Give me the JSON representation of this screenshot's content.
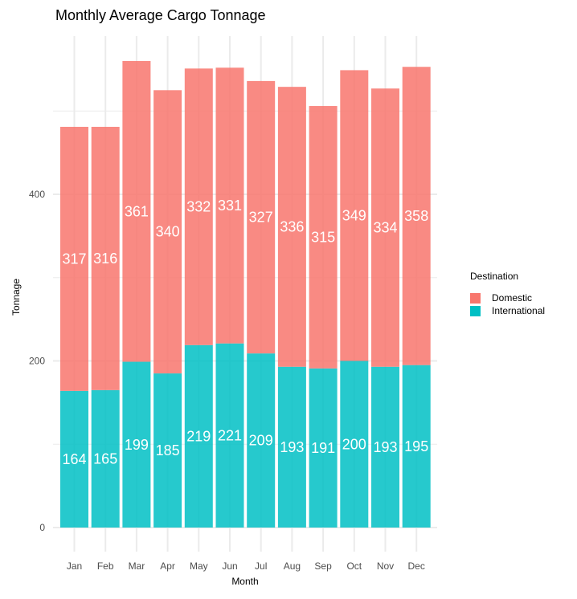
{
  "chart_data": {
    "type": "bar",
    "stacked": true,
    "title": "Monthly Average Cargo Tonnage",
    "xlabel": "Month",
    "ylabel": "Tonnage",
    "categories": [
      "Jan",
      "Feb",
      "Mar",
      "Apr",
      "May",
      "Jun",
      "Jul",
      "Aug",
      "Sep",
      "Oct",
      "Nov",
      "Dec"
    ],
    "series": [
      {
        "name": "International",
        "color": "#00BFC4",
        "values": [
          164,
          165,
          199,
          185,
          219,
          221,
          209,
          193,
          191,
          200,
          193,
          195
        ]
      },
      {
        "name": "Domestic",
        "color": "#F8766D",
        "values": [
          317,
          316,
          361,
          340,
          332,
          331,
          327,
          336,
          315,
          349,
          334,
          358
        ]
      }
    ],
    "ylim": [
      0,
      600
    ],
    "yticks": [
      0,
      200,
      400
    ],
    "grid": true,
    "legend": {
      "title": "Destination",
      "placement": "right",
      "entries": [
        "Domestic",
        "International"
      ]
    }
  }
}
